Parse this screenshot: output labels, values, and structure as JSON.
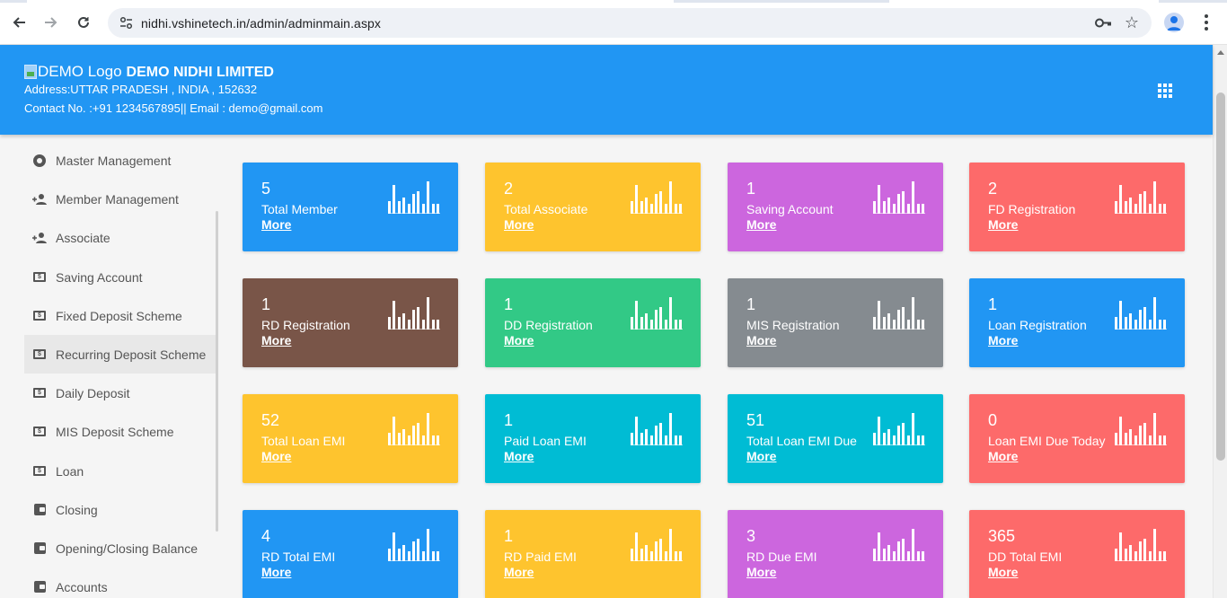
{
  "browser": {
    "url": "nidhi.vshinetech.in/admin/adminmain.aspx",
    "back_icon": "arrow-back-icon",
    "forward_icon": "arrow-forward-icon",
    "reload_icon": "reload-icon"
  },
  "header": {
    "logo_alt": "DEMO Logo",
    "company": "DEMO NIDHI LIMITED",
    "address": "Address:UTTAR PRADESH , INDIA , 152632",
    "contact": "Contact No. :+91 1234567895|| Email : demo@gmail.com"
  },
  "sidebar": {
    "items": [
      {
        "label": "Master Management",
        "icon": "disc"
      },
      {
        "label": "Member Management",
        "icon": "person-add"
      },
      {
        "label": "Associate",
        "icon": "person-add"
      },
      {
        "label": "Saving Account",
        "icon": "money"
      },
      {
        "label": "Fixed Deposit Scheme",
        "icon": "money"
      },
      {
        "label": "Recurring Deposit Scheme",
        "icon": "money"
      },
      {
        "label": "Daily Deposit",
        "icon": "money"
      },
      {
        "label": "MIS Deposit Scheme",
        "icon": "money"
      },
      {
        "label": "Loan",
        "icon": "money"
      },
      {
        "label": "Closing",
        "icon": "wallet"
      },
      {
        "label": "Opening/Closing Balance",
        "icon": "wallet"
      },
      {
        "label": "Accounts",
        "icon": "wallet"
      }
    ],
    "active_index": 5
  },
  "colors": {
    "header": "#2196f3",
    "blue": "#2196f3",
    "yellow": "#fec42e",
    "purple": "#cc66de",
    "red": "#fd6a6a",
    "brown": "#795548",
    "green": "#32c986",
    "grey": "#858b90",
    "cyan": "#00bcd4"
  },
  "cards": [
    {
      "count": "5",
      "label": "Total Member",
      "more": "More",
      "color": "#2196f3"
    },
    {
      "count": "2",
      "label": "Total Associate",
      "more": "More",
      "color": "#fec42e"
    },
    {
      "count": "1",
      "label": "Saving Account",
      "more": "More",
      "color": "#cc66de"
    },
    {
      "count": "2",
      "label": "FD Registration",
      "more": "More",
      "color": "#fd6a6a"
    },
    {
      "count": "1",
      "label": "RD Registration",
      "more": "More",
      "color": "#795548"
    },
    {
      "count": "1",
      "label": "DD Registration",
      "more": "More",
      "color": "#32c986"
    },
    {
      "count": "1",
      "label": "MIS Registration",
      "more": "More",
      "color": "#858b90"
    },
    {
      "count": "1",
      "label": "Loan Registration",
      "more": "More",
      "color": "#2196f3"
    },
    {
      "count": "52",
      "label": "Total Loan EMI",
      "more": "More",
      "color": "#fec42e"
    },
    {
      "count": "1",
      "label": "Paid Loan EMI",
      "more": "More",
      "color": "#00bcd4"
    },
    {
      "count": "51",
      "label": "Total Loan EMI Due",
      "more": "More",
      "color": "#00bcd4"
    },
    {
      "count": "0",
      "label": "Loan EMI Due Today",
      "more": "More",
      "color": "#fd6a6a"
    },
    {
      "count": "4",
      "label": "RD Total EMI",
      "more": "More",
      "color": "#2196f3"
    },
    {
      "count": "1",
      "label": "RD Paid EMI",
      "more": "More",
      "color": "#fec42e"
    },
    {
      "count": "3",
      "label": "RD Due EMI",
      "more": "More",
      "color": "#cc66de"
    },
    {
      "count": "365",
      "label": "DD Total EMI",
      "more": "More",
      "color": "#fd6a6a"
    }
  ],
  "sparkline_levels": [
    0.4,
    0.9,
    0.4,
    0.5,
    0.3,
    0.6,
    0.7,
    0.3,
    1.0,
    0.3,
    0.3
  ]
}
